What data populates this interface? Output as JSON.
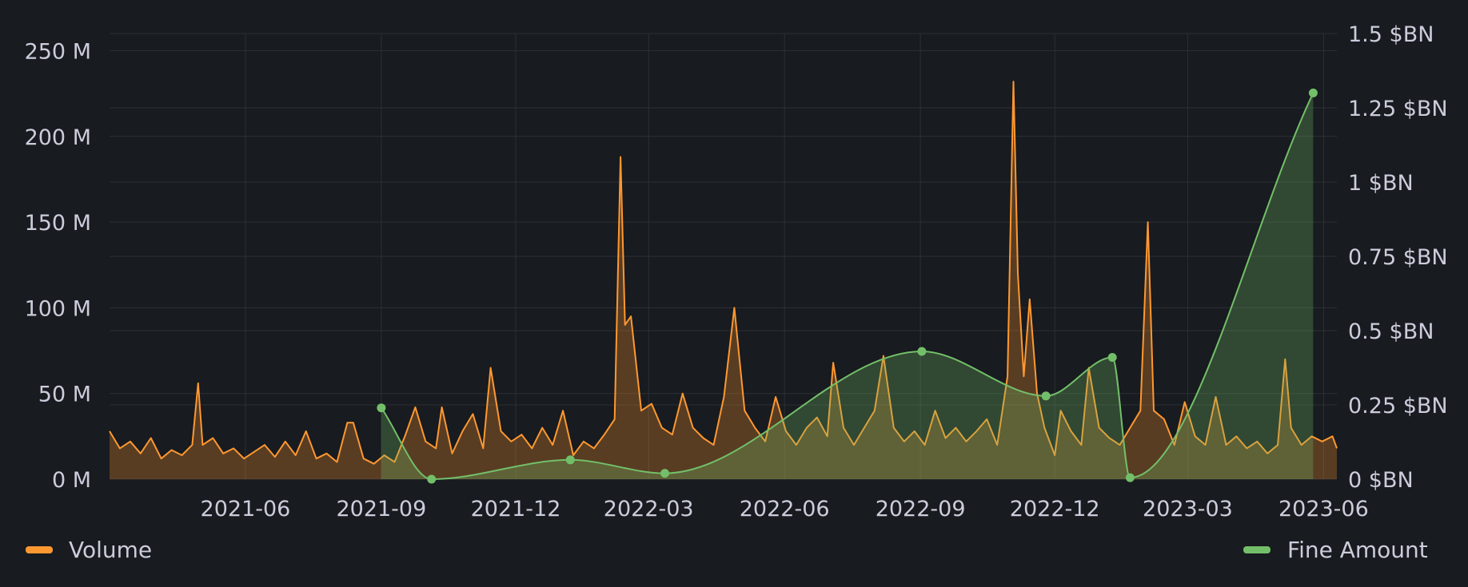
{
  "colors": {
    "background": "#181b1f",
    "grid": "#2c3035",
    "text": "#ccccdc",
    "volume": "#ff9830",
    "fine": "#73bf69"
  },
  "legend": {
    "volume_label": "Volume",
    "fine_label": "Fine Amount"
  },
  "chart_data": {
    "type": "line",
    "grid": true,
    "legend_placement": "bottom",
    "x_range": [
      "2021-03-01",
      "2023-06-10"
    ],
    "x_ticks": [
      "2021-06",
      "2021-09",
      "2021-12",
      "2022-03",
      "2022-06",
      "2022-09",
      "2022-12",
      "2023-03",
      "2023-06"
    ],
    "y_left": {
      "label": "",
      "range": [
        0,
        260
      ],
      "ticks": [
        0,
        50,
        100,
        150,
        200,
        250
      ],
      "tick_labels": [
        "0 M",
        "50 M",
        "100 M",
        "150 M",
        "200 M",
        "250 M"
      ]
    },
    "y_right": {
      "label": "",
      "range": [
        0,
        1.5
      ],
      "ticks": [
        0,
        0.25,
        0.5,
        0.75,
        1,
        1.25,
        1.5
      ],
      "tick_labels": [
        "0 $BN",
        "0.25 $BN",
        "0.5 $BN",
        "0.75 $BN",
        "1 $BN",
        "1.25 $BN",
        "1.5 $BN"
      ]
    },
    "series": [
      {
        "name": "Volume",
        "axis": "left",
        "style": "area-line",
        "points": [
          [
            "2021-03-01",
            28
          ],
          [
            "2021-03-08",
            18
          ],
          [
            "2021-03-15",
            22
          ],
          [
            "2021-03-22",
            15
          ],
          [
            "2021-03-29",
            24
          ],
          [
            "2021-04-05",
            12
          ],
          [
            "2021-04-12",
            17
          ],
          [
            "2021-04-19",
            14
          ],
          [
            "2021-04-26",
            20
          ],
          [
            "2021-04-30",
            56
          ],
          [
            "2021-05-03",
            20
          ],
          [
            "2021-05-10",
            24
          ],
          [
            "2021-05-17",
            15
          ],
          [
            "2021-05-24",
            18
          ],
          [
            "2021-05-31",
            12
          ],
          [
            "2021-06-07",
            16
          ],
          [
            "2021-06-14",
            20
          ],
          [
            "2021-06-21",
            13
          ],
          [
            "2021-06-28",
            22
          ],
          [
            "2021-07-05",
            14
          ],
          [
            "2021-07-12",
            28
          ],
          [
            "2021-07-19",
            12
          ],
          [
            "2021-07-26",
            15
          ],
          [
            "2021-08-02",
            10
          ],
          [
            "2021-08-09",
            33
          ],
          [
            "2021-08-13",
            33
          ],
          [
            "2021-08-20",
            12
          ],
          [
            "2021-08-27",
            9
          ],
          [
            "2021-09-03",
            14
          ],
          [
            "2021-09-10",
            10
          ],
          [
            "2021-09-17",
            25
          ],
          [
            "2021-09-24",
            42
          ],
          [
            "2021-10-01",
            22
          ],
          [
            "2021-10-08",
            18
          ],
          [
            "2021-10-12",
            42
          ],
          [
            "2021-10-19",
            15
          ],
          [
            "2021-10-26",
            28
          ],
          [
            "2021-11-02",
            38
          ],
          [
            "2021-11-09",
            18
          ],
          [
            "2021-11-14",
            65
          ],
          [
            "2021-11-21",
            28
          ],
          [
            "2021-11-28",
            22
          ],
          [
            "2021-12-05",
            26
          ],
          [
            "2021-12-12",
            18
          ],
          [
            "2021-12-19",
            30
          ],
          [
            "2021-12-26",
            20
          ],
          [
            "2022-01-02",
            40
          ],
          [
            "2022-01-09",
            14
          ],
          [
            "2022-01-16",
            22
          ],
          [
            "2022-01-23",
            18
          ],
          [
            "2022-01-30",
            26
          ],
          [
            "2022-02-06",
            35
          ],
          [
            "2022-02-10",
            188
          ],
          [
            "2022-02-13",
            90
          ],
          [
            "2022-02-17",
            95
          ],
          [
            "2022-02-24",
            40
          ],
          [
            "2022-03-03",
            44
          ],
          [
            "2022-03-10",
            30
          ],
          [
            "2022-03-17",
            26
          ],
          [
            "2022-03-24",
            50
          ],
          [
            "2022-03-31",
            30
          ],
          [
            "2022-04-07",
            24
          ],
          [
            "2022-04-14",
            20
          ],
          [
            "2022-04-21",
            48
          ],
          [
            "2022-04-28",
            100
          ],
          [
            "2022-05-05",
            40
          ],
          [
            "2022-05-12",
            30
          ],
          [
            "2022-05-19",
            22
          ],
          [
            "2022-05-26",
            48
          ],
          [
            "2022-06-02",
            28
          ],
          [
            "2022-06-09",
            20
          ],
          [
            "2022-06-16",
            30
          ],
          [
            "2022-06-23",
            36
          ],
          [
            "2022-06-30",
            25
          ],
          [
            "2022-07-04",
            68
          ],
          [
            "2022-07-11",
            30
          ],
          [
            "2022-07-18",
            20
          ],
          [
            "2022-07-25",
            30
          ],
          [
            "2022-08-01",
            40
          ],
          [
            "2022-08-07",
            72
          ],
          [
            "2022-08-14",
            30
          ],
          [
            "2022-08-21",
            22
          ],
          [
            "2022-08-28",
            28
          ],
          [
            "2022-09-04",
            20
          ],
          [
            "2022-09-11",
            40
          ],
          [
            "2022-09-18",
            24
          ],
          [
            "2022-09-25",
            30
          ],
          [
            "2022-10-02",
            22
          ],
          [
            "2022-10-09",
            28
          ],
          [
            "2022-10-16",
            35
          ],
          [
            "2022-10-23",
            20
          ],
          [
            "2022-10-30",
            60
          ],
          [
            "2022-11-03",
            232
          ],
          [
            "2022-11-06",
            120
          ],
          [
            "2022-11-10",
            60
          ],
          [
            "2022-11-14",
            105
          ],
          [
            "2022-11-19",
            50
          ],
          [
            "2022-11-24",
            30
          ],
          [
            "2022-12-01",
            14
          ],
          [
            "2022-12-05",
            40
          ],
          [
            "2022-12-12",
            28
          ],
          [
            "2022-12-19",
            20
          ],
          [
            "2022-12-24",
            65
          ],
          [
            "2022-12-31",
            30
          ],
          [
            "2023-01-07",
            24
          ],
          [
            "2023-01-14",
            20
          ],
          [
            "2023-01-21",
            30
          ],
          [
            "2023-01-28",
            40
          ],
          [
            "2023-02-02",
            150
          ],
          [
            "2023-02-06",
            40
          ],
          [
            "2023-02-13",
            35
          ],
          [
            "2023-02-20",
            20
          ],
          [
            "2023-02-27",
            45
          ],
          [
            "2023-03-06",
            25
          ],
          [
            "2023-03-13",
            20
          ],
          [
            "2023-03-20",
            48
          ],
          [
            "2023-03-27",
            20
          ],
          [
            "2023-04-03",
            25
          ],
          [
            "2023-04-10",
            18
          ],
          [
            "2023-04-17",
            22
          ],
          [
            "2023-04-24",
            15
          ],
          [
            "2023-05-01",
            20
          ],
          [
            "2023-05-06",
            70
          ],
          [
            "2023-05-10",
            30
          ],
          [
            "2023-05-17",
            20
          ],
          [
            "2023-05-24",
            25
          ],
          [
            "2023-05-31",
            22
          ],
          [
            "2023-06-07",
            25
          ],
          [
            "2023-06-10",
            18
          ]
        ]
      },
      {
        "name": "Fine Amount",
        "axis": "right",
        "style": "smooth-area-line-points",
        "points": [
          [
            "2021-09-01",
            0.24
          ],
          [
            "2021-10-05",
            0.0
          ],
          [
            "2022-01-07",
            0.065
          ],
          [
            "2022-03-12",
            0.02
          ],
          [
            "2022-09-02",
            0.43
          ],
          [
            "2022-11-25",
            0.28
          ],
          [
            "2023-01-09",
            0.41
          ],
          [
            "2023-01-21",
            0.005
          ],
          [
            "2023-05-25",
            1.3
          ]
        ]
      }
    ]
  }
}
